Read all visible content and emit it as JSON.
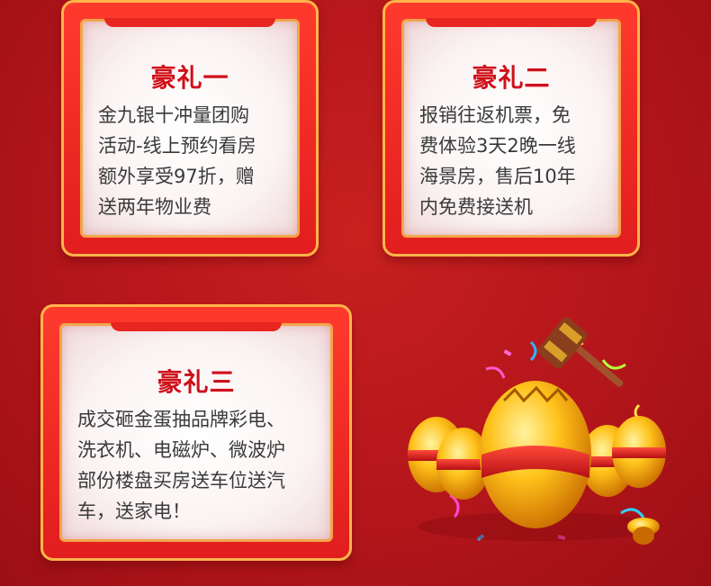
{
  "gifts": [
    {
      "title": "豪礼一",
      "text": "金九银十冲量团购\n活动-线上预约看房\n额外享受97折，赠\n送两年物业费"
    },
    {
      "title": "豪礼二",
      "text": "报销往返机票，免\n费体验3天2晚一线\n海景房，售后10年\n内免费接送机"
    },
    {
      "title": "豪礼三",
      "text": "成交砸金蛋抽品牌彩电、\n洗衣机、电磁炉、微波炉\n部份楼盘买房送车位送汽\n车，送家电！"
    }
  ],
  "colors": {
    "background": "#b4161b",
    "card_frame": "#e11d1e",
    "card_border": "#ffb44a",
    "title": "#d0101a",
    "body_text": "#3a3a3a"
  },
  "illustration": {
    "icons": [
      "golden-eggs-icon",
      "hammer-icon",
      "confetti-icon"
    ]
  }
}
